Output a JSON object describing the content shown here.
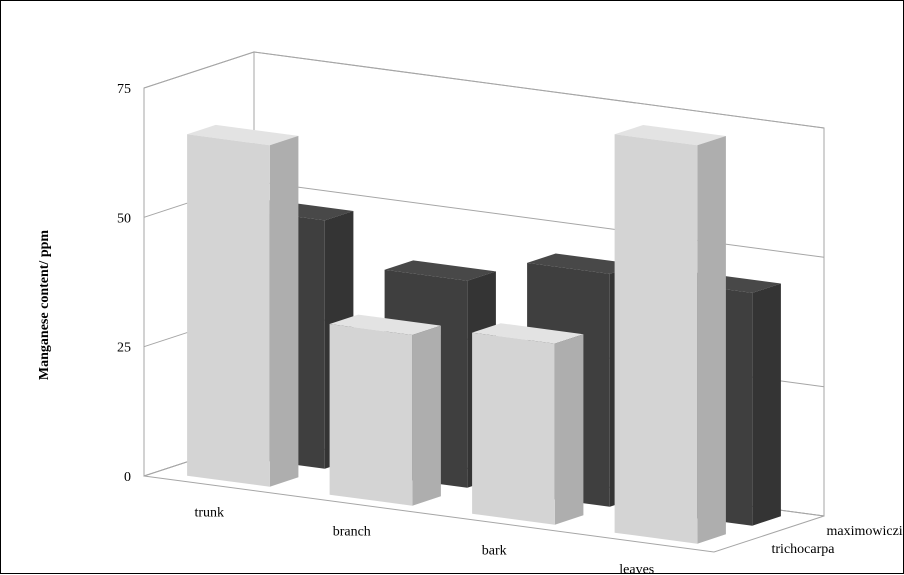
{
  "chart_data": {
    "type": "bar",
    "subtype": "3d-column",
    "title": "",
    "xlabel": "",
    "ylabel": "Manganese content/ ppm",
    "ylim": [
      0,
      75
    ],
    "yticks": [
      "0",
      "25",
      "50",
      "75"
    ],
    "categories": [
      "trunk",
      "branch",
      "bark",
      "leaves"
    ],
    "series": [
      {
        "name": "maximowiczii",
        "color": "#3f3f3f",
        "values": [
          48,
          40,
          45,
          45
        ]
      },
      {
        "name": "trichocarpa",
        "color": "#d4d4d4",
        "values": [
          66,
          33,
          35,
          77
        ]
      }
    ],
    "grid": true,
    "legend": "depth-axis labels (right)"
  }
}
